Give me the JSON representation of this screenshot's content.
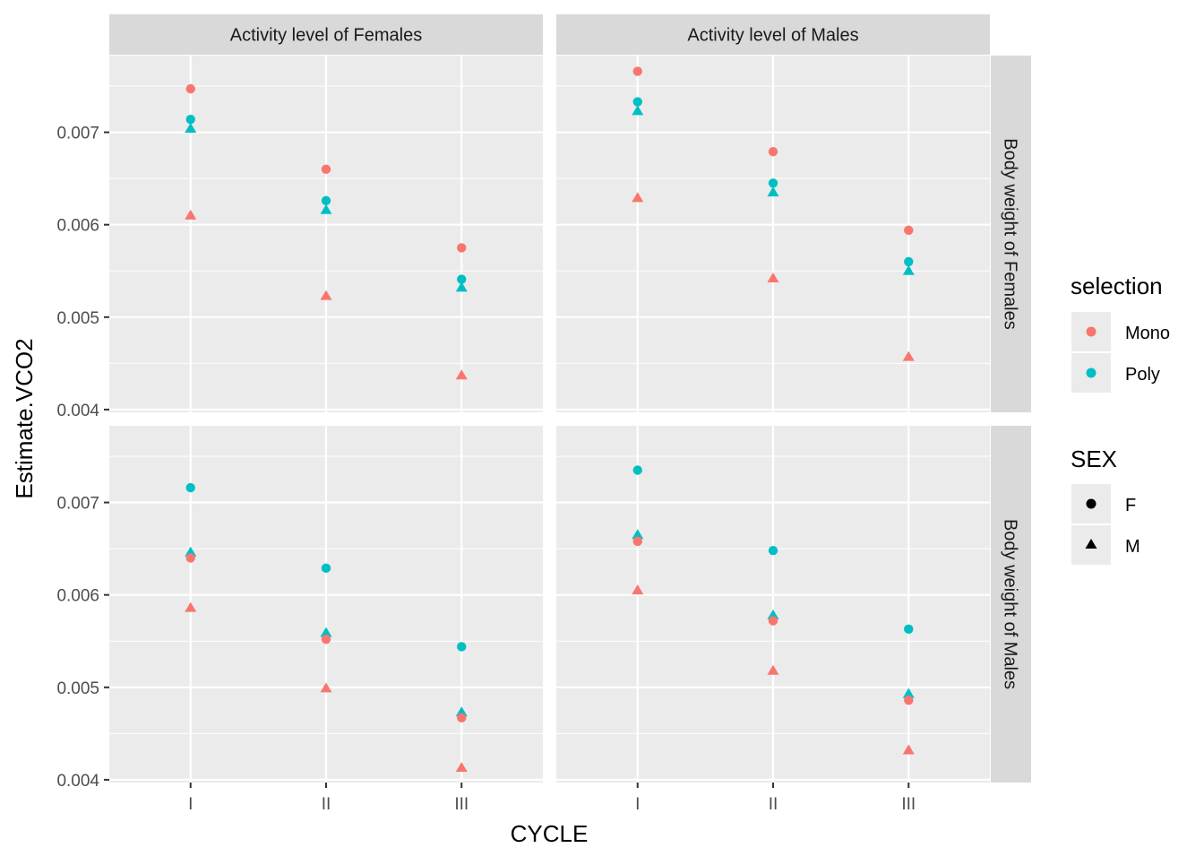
{
  "chart_data": {
    "type": "scatter",
    "title": "",
    "xlabel": "CYCLE",
    "ylabel": "Estimate.VCO2",
    "x_categories": [
      "I",
      "II",
      "III"
    ],
    "y_ticks": [
      "0.004",
      "0.005",
      "0.006",
      "0.007"
    ],
    "ylim": [
      0.00397,
      0.00783
    ],
    "grid": true,
    "col_facets": [
      "Activity level of Females",
      "Activity level of Males"
    ],
    "row_facets": [
      "Body weight of Females",
      "Body weight of Males"
    ],
    "legend_position": "right",
    "legends": {
      "selection": {
        "title": "selection",
        "items": [
          "Mono",
          "Poly"
        ],
        "colors": [
          "#F8766D",
          "#00BFC4"
        ]
      },
      "sex": {
        "title": "SEX",
        "items": [
          "F",
          "M"
        ],
        "shapes": [
          "circle",
          "triangle"
        ]
      }
    },
    "panels": [
      {
        "row": 0,
        "col": 0,
        "points": [
          {
            "x": "I",
            "selection": "Mono",
            "sex": "F",
            "y": 0.00747
          },
          {
            "x": "I",
            "selection": "Poly",
            "sex": "F",
            "y": 0.00714
          },
          {
            "x": "I",
            "selection": "Poly",
            "sex": "M",
            "y": 0.00704
          },
          {
            "x": "I",
            "selection": "Mono",
            "sex": "M",
            "y": 0.0061
          },
          {
            "x": "II",
            "selection": "Mono",
            "sex": "F",
            "y": 0.0066
          },
          {
            "x": "II",
            "selection": "Poly",
            "sex": "F",
            "y": 0.00626
          },
          {
            "x": "II",
            "selection": "Poly",
            "sex": "M",
            "y": 0.00616
          },
          {
            "x": "II",
            "selection": "Mono",
            "sex": "M",
            "y": 0.00523
          },
          {
            "x": "III",
            "selection": "Mono",
            "sex": "F",
            "y": 0.00575
          },
          {
            "x": "III",
            "selection": "Poly",
            "sex": "F",
            "y": 0.00541
          },
          {
            "x": "III",
            "selection": "Poly",
            "sex": "M",
            "y": 0.00532
          },
          {
            "x": "III",
            "selection": "Mono",
            "sex": "M",
            "y": 0.00437
          }
        ]
      },
      {
        "row": 0,
        "col": 1,
        "points": [
          {
            "x": "I",
            "selection": "Mono",
            "sex": "F",
            "y": 0.00766
          },
          {
            "x": "I",
            "selection": "Poly",
            "sex": "F",
            "y": 0.00733
          },
          {
            "x": "I",
            "selection": "Poly",
            "sex": "M",
            "y": 0.00723
          },
          {
            "x": "I",
            "selection": "Mono",
            "sex": "M",
            "y": 0.00629
          },
          {
            "x": "II",
            "selection": "Mono",
            "sex": "F",
            "y": 0.00679
          },
          {
            "x": "II",
            "selection": "Poly",
            "sex": "F",
            "y": 0.00645
          },
          {
            "x": "II",
            "selection": "Poly",
            "sex": "M",
            "y": 0.00635
          },
          {
            "x": "II",
            "selection": "Mono",
            "sex": "M",
            "y": 0.00542
          },
          {
            "x": "III",
            "selection": "Mono",
            "sex": "F",
            "y": 0.00594
          },
          {
            "x": "III",
            "selection": "Poly",
            "sex": "F",
            "y": 0.0056
          },
          {
            "x": "III",
            "selection": "Poly",
            "sex": "M",
            "y": 0.0055
          },
          {
            "x": "III",
            "selection": "Mono",
            "sex": "M",
            "y": 0.00457
          }
        ]
      },
      {
        "row": 1,
        "col": 0,
        "points": [
          {
            "x": "I",
            "selection": "Poly",
            "sex": "F",
            "y": 0.00716
          },
          {
            "x": "I",
            "selection": "Poly",
            "sex": "M",
            "y": 0.00646
          },
          {
            "x": "I",
            "selection": "Mono",
            "sex": "F",
            "y": 0.0064
          },
          {
            "x": "I",
            "selection": "Mono",
            "sex": "M",
            "y": 0.00586
          },
          {
            "x": "II",
            "selection": "Poly",
            "sex": "F",
            "y": 0.00629
          },
          {
            "x": "II",
            "selection": "Poly",
            "sex": "M",
            "y": 0.00559
          },
          {
            "x": "II",
            "selection": "Mono",
            "sex": "F",
            "y": 0.00552
          },
          {
            "x": "II",
            "selection": "Mono",
            "sex": "M",
            "y": 0.00499
          },
          {
            "x": "III",
            "selection": "Poly",
            "sex": "F",
            "y": 0.00544
          },
          {
            "x": "III",
            "selection": "Poly",
            "sex": "M",
            "y": 0.00473
          },
          {
            "x": "III",
            "selection": "Mono",
            "sex": "F",
            "y": 0.00467
          },
          {
            "x": "III",
            "selection": "Mono",
            "sex": "M",
            "y": 0.00413
          }
        ]
      },
      {
        "row": 1,
        "col": 1,
        "points": [
          {
            "x": "I",
            "selection": "Poly",
            "sex": "F",
            "y": 0.00735
          },
          {
            "x": "I",
            "selection": "Poly",
            "sex": "M",
            "y": 0.00665
          },
          {
            "x": "I",
            "selection": "Mono",
            "sex": "F",
            "y": 0.00658
          },
          {
            "x": "I",
            "selection": "Mono",
            "sex": "M",
            "y": 0.00605
          },
          {
            "x": "II",
            "selection": "Poly",
            "sex": "F",
            "y": 0.00648
          },
          {
            "x": "II",
            "selection": "Poly",
            "sex": "M",
            "y": 0.00578
          },
          {
            "x": "II",
            "selection": "Mono",
            "sex": "F",
            "y": 0.00572
          },
          {
            "x": "II",
            "selection": "Mono",
            "sex": "M",
            "y": 0.00518
          },
          {
            "x": "III",
            "selection": "Poly",
            "sex": "F",
            "y": 0.00563
          },
          {
            "x": "III",
            "selection": "Poly",
            "sex": "M",
            "y": 0.00493
          },
          {
            "x": "III",
            "selection": "Mono",
            "sex": "F",
            "y": 0.00486
          },
          {
            "x": "III",
            "selection": "Mono",
            "sex": "M",
            "y": 0.00432
          }
        ]
      }
    ]
  }
}
